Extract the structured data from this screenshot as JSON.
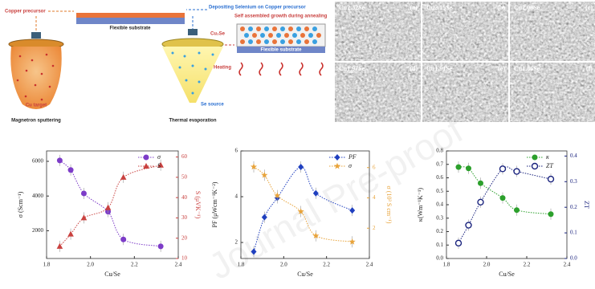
{
  "schematic": {
    "copper_precursor": "Copper precursor",
    "deposit": "Depositing Selenium on Copper precursor",
    "substrate_1": "Flexible substrate",
    "growth": "Self assembled growth during annealing",
    "cu2se": "Cu₂Se",
    "substrate_2": "Flexible substrate",
    "heating": "Heating",
    "cu_target": "Cu target",
    "magnetron": "Magnetron sputtering",
    "se_source": "Se source",
    "thermal": "Thermal evaporation"
  },
  "sem_panels": [
    {
      "composition": "Cu2.32Se",
      "label": "(a)"
    },
    {
      "composition": "Cu2.15Se",
      "label": "(b)"
    },
    {
      "composition": "Cu2.08Se",
      "label": "(c)"
    },
    {
      "composition": "Cu1.97Se",
      "label": "(d)"
    },
    {
      "composition": "Cu1.91Se",
      "label": "(e)"
    },
    {
      "composition": "Cu1.86Se",
      "label": "(f)"
    }
  ],
  "watermark": "Journal Pre-proof",
  "chart_data": [
    {
      "type": "line",
      "x_label": "Cu/Se",
      "y_label": "σ (Scm⁻¹)",
      "y2_label": "S (μVK⁻¹)",
      "x": [
        1.86,
        1.91,
        1.97,
        2.08,
        2.15,
        2.32
      ],
      "xlim": [
        1.8,
        2.4
      ],
      "xticks": [
        1.8,
        {
          "value": 2,
          "label": "2.0"
        },
        2.2,
        2.4
      ],
      "ylim": [
        400,
        6600
      ],
      "yticks": [
        2000,
        4000,
        6000
      ],
      "y2lim": [
        10,
        63
      ],
      "y2ticks": [
        10,
        20,
        30,
        40,
        50,
        60
      ],
      "legend": "upper right",
      "series": [
        {
          "name": "σ",
          "color": "#7d3cc8",
          "marker": "circle",
          "values": [
            6050,
            5500,
            4150,
            3100,
            1500,
            1100
          ]
        },
        {
          "name": "S",
          "color": "#c9413f",
          "marker": "triangle",
          "axis": "y2",
          "values": [
            16,
            22,
            30,
            35,
            50,
            56
          ]
        }
      ]
    },
    {
      "type": "line",
      "x_label": "Cu/Se",
      "y_label": "PF (μWcm⁻¹K⁻²)",
      "y2_label": "σ (10³ S cm⁻¹)",
      "x": [
        1.86,
        1.91,
        1.97,
        2.08,
        2.15,
        2.32
      ],
      "xlim": [
        1.8,
        2.4
      ],
      "xticks": [
        1.8,
        {
          "value": 2,
          "label": "2.0"
        },
        2.2,
        2.4
      ],
      "ylim": [
        1.3,
        6
      ],
      "yticks": [
        2,
        4,
        6
      ],
      "y2lim": [
        0,
        7.1
      ],
      "y2ticks": [
        2,
        4,
        6
      ],
      "legend": "upper right",
      "series": [
        {
          "name": "PF",
          "color": "#1f3fbf",
          "marker": "diamond",
          "values": [
            1.6,
            3.1,
            3.95,
            5.3,
            4.15,
            3.4
          ]
        },
        {
          "name": "σ",
          "color": "#e8a33a",
          "marker": "star",
          "axis": "y2",
          "values": [
            6.05,
            5.5,
            4.15,
            3.1,
            1.5,
            1.1
          ]
        }
      ]
    },
    {
      "type": "line",
      "x_label": "Cu/Se",
      "y_label": "κ(Wm⁻¹K⁻¹)",
      "y2_label": "ZT",
      "x": [
        1.86,
        1.91,
        1.97,
        2.08,
        2.15,
        2.32
      ],
      "xlim": [
        1.8,
        2.4
      ],
      "xticks": [
        1.8,
        {
          "value": 2,
          "label": "2.0"
        },
        2.2,
        2.4
      ],
      "ylim": [
        0,
        0.8
      ],
      "yticks": [
        {
          "value": 0,
          "label": "0.0"
        },
        0.1,
        0.2,
        0.3,
        0.4,
        0.5,
        0.6,
        0.7,
        0.8
      ],
      "y2lim": [
        0,
        0.42
      ],
      "y2ticks": [
        {
          "value": 0,
          "label": "0.0"
        },
        0.1,
        0.2,
        0.3,
        0.4
      ],
      "legend": "upper right",
      "series": [
        {
          "name": "κ",
          "color": "#2ca02c",
          "marker": "circle",
          "values": [
            0.68,
            0.67,
            0.56,
            0.45,
            0.36,
            0.33
          ]
        },
        {
          "name": "ZT",
          "color": "#1a237e",
          "marker": "open-circle",
          "axis": "y2",
          "values": [
            0.06,
            0.13,
            0.22,
            0.35,
            0.34,
            0.31
          ]
        }
      ]
    }
  ]
}
